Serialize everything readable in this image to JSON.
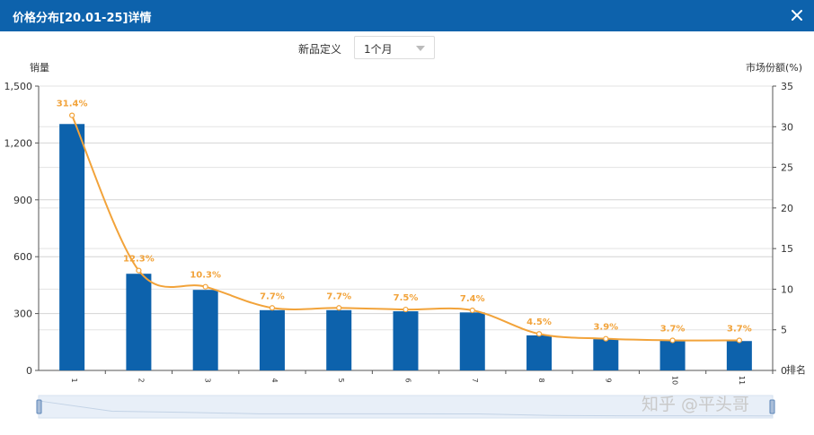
{
  "window": {
    "title": "价格分布[20.01-25]详情",
    "close_icon": "close-icon"
  },
  "filter": {
    "label": "新品定义",
    "selected": "1个月",
    "dropdown_icon": "chevron-down-icon"
  },
  "watermark": "知乎 @平头哥",
  "colors": {
    "titlebar": "#0d62ac",
    "bar": "#0d62ac",
    "line": "#f2a33a",
    "zoom_fill": "#e8eff8"
  },
  "chart_data": {
    "type": "bar",
    "categories": [
      "1",
      "2",
      "3",
      "4",
      "5",
      "6",
      "7",
      "8",
      "9",
      "10",
      "11"
    ],
    "series": [
      {
        "name": "销量",
        "type": "bar",
        "axis": "left",
        "values": [
          1300,
          510,
          425,
          318,
          318,
          312,
          306,
          185,
          165,
          158,
          155
        ]
      },
      {
        "name": "市场份额(%)",
        "type": "line",
        "axis": "right",
        "values": [
          31.4,
          12.3,
          10.3,
          7.7,
          7.7,
          7.5,
          7.4,
          4.5,
          3.9,
          3.7,
          3.7
        ]
      }
    ],
    "line_labels": [
      "31.4%",
      "12.3%",
      "10.3%",
      "7.7%",
      "7.7%",
      "7.5%",
      "7.4%",
      "4.5%",
      "3.9%",
      "3.7%",
      "3.7%"
    ],
    "ylabel_left": "销量",
    "ylabel_right": "市场份额(%)",
    "xlabel": "排名",
    "ylim_left": [
      0,
      1500
    ],
    "ylim_right": [
      0,
      35
    ],
    "yticks_left": [
      "0",
      "300",
      "600",
      "900",
      "1,200",
      "1,500"
    ],
    "yticks_right": [
      "0",
      "5",
      "10",
      "15",
      "20",
      "25",
      "30",
      "35"
    ],
    "grid": true,
    "has_zoom_slider": true
  }
}
